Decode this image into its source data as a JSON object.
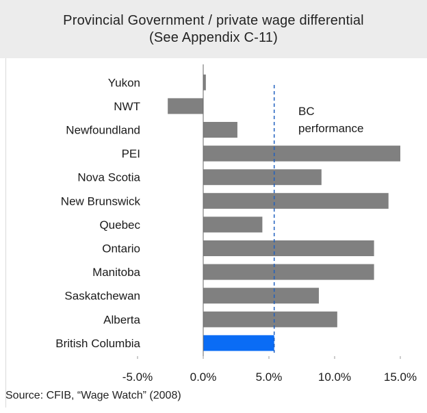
{
  "title": {
    "line1": "Provincial Government / private wage differential",
    "line2": "(See Appendix C-11)"
  },
  "chart_data": {
    "type": "bar",
    "orientation": "horizontal",
    "categories": [
      "Yukon",
      "NWT",
      "Newfoundland",
      "PEI",
      "Nova Scotia",
      "New Brunswick",
      "Quebec",
      "Ontario",
      "Manitoba",
      "Saskatchewan",
      "Alberta",
      "British Columbia"
    ],
    "values": [
      0.2,
      -2.7,
      2.6,
      15.0,
      9.0,
      14.1,
      4.5,
      13.0,
      13.0,
      8.8,
      10.2,
      5.4
    ],
    "highlight": "British Columbia",
    "xlim": [
      -5.0,
      15.0
    ],
    "ticks": [
      -5.0,
      0.0,
      5.0,
      10.0,
      15.0
    ],
    "tick_labels": [
      "-5.0%",
      "0.0%",
      "5.0%",
      "10.0%",
      "15.0%"
    ],
    "reference_line": {
      "value": 5.4,
      "label_line1": "BC",
      "label_line2": "performance",
      "style": "dashed"
    },
    "bar_color": "#808080",
    "highlight_color": "#0a6cf5",
    "reference_color": "#1f5fbf",
    "grid": false
  },
  "source": "Source: CFIB, “Wage Watch” (2008)"
}
